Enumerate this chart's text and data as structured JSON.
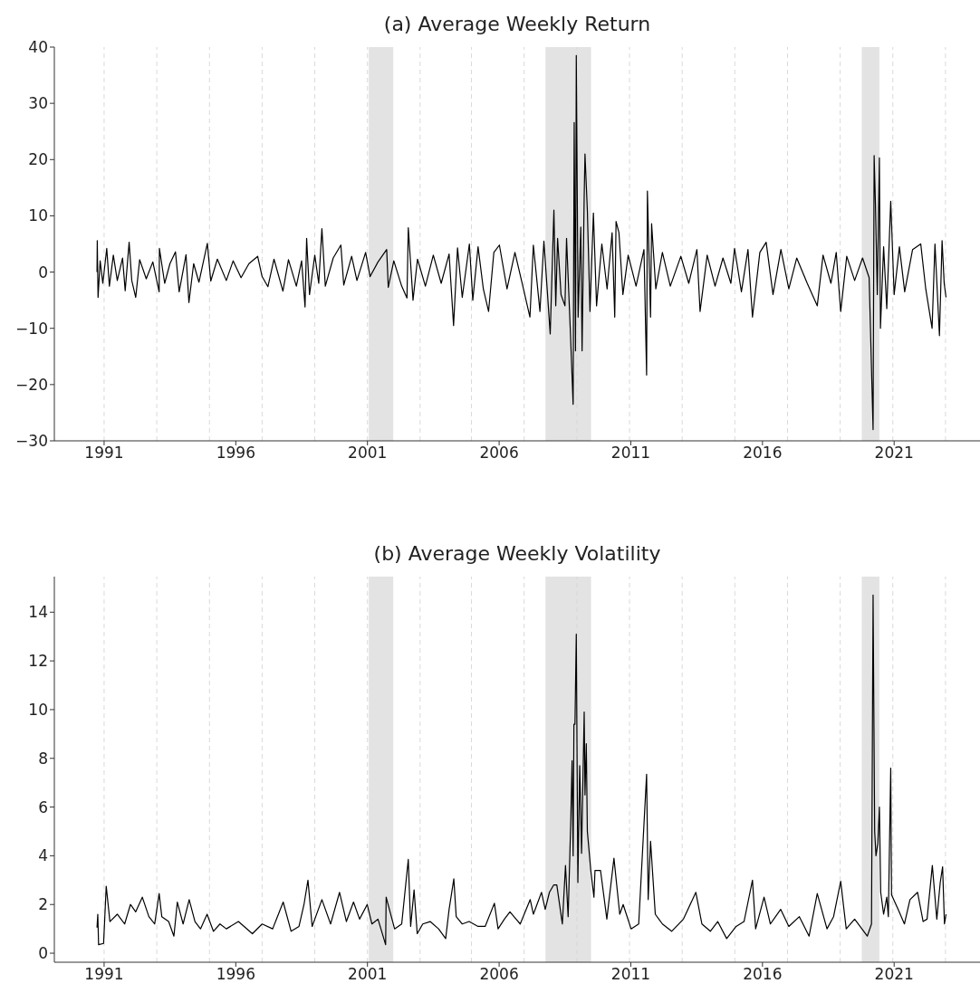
{
  "chart_data": [
    {
      "type": "line",
      "title": "(a) Average Weekly Return",
      "color": "#000000",
      "x": [
        1990.73,
        1990.74,
        1990.77,
        1990.85,
        1990.95,
        1991.1,
        1991.2,
        1991.35,
        1991.5,
        1991.7,
        1991.8,
        1991.95,
        1992.05,
        1992.2,
        1992.35,
        1992.6,
        1992.85,
        1993.09,
        1993.1,
        1993.3,
        1993.5,
        1993.71,
        1993.85,
        1994.11,
        1994.22,
        1994.4,
        1994.6,
        1994.92,
        1995.05,
        1995.3,
        1995.64,
        1995.9,
        1996.2,
        1996.5,
        1996.83,
        1997.0,
        1997.22,
        1997.45,
        1997.79,
        1998.0,
        1998.3,
        1998.5,
        1998.63,
        1998.69,
        1998.8,
        1999.0,
        1999.15,
        1999.27,
        1999.4,
        1999.7,
        1999.99,
        2000.1,
        2000.4,
        2000.6,
        2000.93,
        2001.1,
        2001.4,
        2001.73,
        2001.79,
        2002.0,
        2002.3,
        2002.5,
        2002.55,
        2002.73,
        2002.9,
        2003.2,
        2003.5,
        2003.8,
        2004.1,
        2004.27,
        2004.42,
        2004.6,
        2004.87,
        2005.0,
        2005.2,
        2005.4,
        2005.6,
        2005.8,
        2006.01,
        2006.3,
        2006.6,
        2006.9,
        2007.17,
        2007.3,
        2007.55,
        2007.7,
        2007.94,
        2008.08,
        2008.15,
        2008.22,
        2008.35,
        2008.5,
        2008.56,
        2008.7,
        2008.81,
        2008.85,
        2008.9,
        2008.93,
        2009.0,
        2009.1,
        2009.15,
        2009.23,
        2009.26,
        2009.35,
        2009.45,
        2009.58,
        2009.7,
        2009.9,
        2010.1,
        2010.29,
        2010.39,
        2010.44,
        2010.55,
        2010.7,
        2010.9,
        2011.2,
        2011.5,
        2011.6,
        2011.63,
        2011.75,
        2011.79,
        2011.95,
        2012.2,
        2012.5,
        2012.9,
        2013.2,
        2013.51,
        2013.63,
        2013.9,
        2014.2,
        2014.5,
        2014.8,
        2014.94,
        2015.2,
        2015.45,
        2015.62,
        2015.9,
        2016.14,
        2016.4,
        2016.7,
        2017.0,
        2017.3,
        2017.7,
        2018.08,
        2018.3,
        2018.6,
        2018.8,
        2018.97,
        2019.2,
        2019.5,
        2019.8,
        2020.05,
        2020.2,
        2020.24,
        2020.29,
        2020.36,
        2020.44,
        2020.48,
        2020.6,
        2020.72,
        2020.87,
        2021.0,
        2021.2,
        2021.4,
        2021.7,
        2022.01,
        2022.2,
        2022.44,
        2022.55,
        2022.72,
        2022.82,
        2022.9,
        2022.97
      ],
      "values": [
        0,
        5.6,
        -4.5,
        2,
        -2,
        4.2,
        -2.5,
        3,
        -1.5,
        2.5,
        -3.3,
        5.3,
        -1.5,
        -4.5,
        2.2,
        -1.2,
        1.8,
        -3.5,
        4.2,
        -2,
        1.5,
        3.6,
        -3.5,
        3.1,
        -5.4,
        1.5,
        -1.8,
        5.1,
        -1.6,
        2.3,
        -1.5,
        2,
        -1,
        1.5,
        2.8,
        -0.8,
        -2.6,
        2.3,
        -3.4,
        2.2,
        -2.5,
        2,
        -6.2,
        6,
        -4,
        3,
        -2,
        7.7,
        -2.5,
        2.5,
        4.8,
        -2.3,
        2.8,
        -1.5,
        3.5,
        -0.8,
        1.8,
        4,
        -2.7,
        2,
        -2.5,
        -4.6,
        7.9,
        -5,
        2.3,
        -2.5,
        3,
        -2,
        3.2,
        -9.5,
        4.3,
        -4.5,
        5,
        -5,
        4.5,
        -3,
        -7,
        3.5,
        4.8,
        -3,
        3.5,
        -2.5,
        -8,
        4.8,
        -7,
        5.5,
        -11,
        11,
        -6,
        6,
        -4,
        -6,
        6,
        -10,
        -23.5,
        26.6,
        -14,
        38.5,
        -8,
        8,
        -14,
        13.5,
        21,
        11,
        -7,
        10.5,
        -6,
        5,
        -3,
        7,
        -8,
        9,
        7,
        -4,
        3,
        -2.5,
        4,
        -18.3,
        14.4,
        -8,
        8.6,
        -3,
        3.5,
        -2.5,
        2.8,
        -2,
        4,
        -7,
        3,
        -2.5,
        2.5,
        -2,
        4.2,
        -3.5,
        4,
        -8,
        3.5,
        5.3,
        -4,
        4,
        -3,
        2.5,
        -2,
        -6,
        3,
        -2,
        3.5,
        -7,
        2.8,
        -1.5,
        2.5,
        -1,
        -28,
        20.7,
        12,
        -4,
        20.3,
        -10,
        4.5,
        -6.5,
        12.6,
        -4,
        4.5,
        -3.5,
        4,
        5,
        -3,
        -10,
        5,
        -11.3,
        5.6,
        -2,
        -4.5
      ],
      "xlim": [
        1989.11,
        2024.26
      ],
      "xticks": [
        1991,
        1996,
        2001,
        2006,
        2011,
        2016,
        2021
      ],
      "ylim": [
        -30,
        40
      ],
      "yticks": [
        {
          "value": -30,
          "label": "−30"
        },
        {
          "value": -20,
          "label": "−20"
        },
        {
          "value": -10,
          "label": "−10"
        },
        0,
        10,
        20,
        30,
        40
      ],
      "bands": [
        {
          "axis": "x",
          "from": 2001.05,
          "to": 2001.98,
          "color": "#e3e3e3"
        },
        {
          "axis": "x",
          "from": 2007.76,
          "to": 2009.49,
          "color": "#e3e3e3"
        },
        {
          "axis": "x",
          "from": 2019.77,
          "to": 2020.44,
          "color": "#e3e3e3"
        }
      ],
      "ref_lines": [
        {
          "axis": "x",
          "value": 1991.0,
          "color": "#d9d9d9",
          "line_style": "dashed"
        },
        {
          "axis": "x",
          "value": 1993.0,
          "color": "#d9d9d9",
          "line_style": "dashed"
        },
        {
          "axis": "x",
          "value": 1995.0,
          "color": "#d9d9d9",
          "line_style": "dashed"
        },
        {
          "axis": "x",
          "value": 1997.0,
          "color": "#d9d9d9",
          "line_style": "dashed"
        },
        {
          "axis": "x",
          "value": 1999.0,
          "color": "#d9d9d9",
          "line_style": "dashed"
        },
        {
          "axis": "x",
          "value": 2001.0,
          "color": "#d9d9d9",
          "line_style": "dashed"
        },
        {
          "axis": "x",
          "value": 2003.0,
          "color": "#d9d9d9",
          "line_style": "dashed"
        },
        {
          "axis": "x",
          "value": 2004.95,
          "color": "#d9d9d9",
          "line_style": "dashed"
        },
        {
          "axis": "x",
          "value": 2006.95,
          "color": "#d9d9d9",
          "line_style": "dashed"
        },
        {
          "axis": "x",
          "value": 2008.95,
          "color": "#d9d9d9",
          "line_style": "dashed"
        },
        {
          "axis": "x",
          "value": 2010.95,
          "color": "#d9d9d9",
          "line_style": "dashed"
        },
        {
          "axis": "x",
          "value": 2012.95,
          "color": "#d9d9d9",
          "line_style": "dashed"
        },
        {
          "axis": "x",
          "value": 2014.95,
          "color": "#d9d9d9",
          "line_style": "dashed"
        },
        {
          "axis": "x",
          "value": 2016.95,
          "color": "#d9d9d9",
          "line_style": "dashed"
        },
        {
          "axis": "x",
          "value": 2018.95,
          "color": "#d9d9d9",
          "line_style": "dashed"
        },
        {
          "axis": "x",
          "value": 2020.95,
          "color": "#d9d9d9",
          "line_style": "dashed"
        },
        {
          "axis": "x",
          "value": 2022.95,
          "color": "#d9d9d9",
          "line_style": "dashed"
        }
      ]
    },
    {
      "type": "line",
      "title": "(b) Average Weekly Volatility",
      "color": "#000000",
      "x": [
        1990.73,
        1990.76,
        1990.79,
        1990.98,
        1991.08,
        1991.22,
        1991.5,
        1991.78,
        1992.0,
        1992.2,
        1992.45,
        1992.7,
        1992.92,
        1993.09,
        1993.19,
        1993.45,
        1993.65,
        1993.78,
        1994.0,
        1994.23,
        1994.45,
        1994.66,
        1994.91,
        1995.15,
        1995.4,
        1995.64,
        1996.1,
        1996.63,
        1997.0,
        1997.4,
        1997.8,
        1998.1,
        1998.4,
        1998.59,
        1998.74,
        1998.9,
        1999.27,
        1999.6,
        1999.94,
        2000.2,
        2000.47,
        2000.7,
        2000.99,
        2001.17,
        2001.4,
        2001.69,
        2001.71,
        2002.03,
        2002.3,
        2002.55,
        2002.64,
        2002.77,
        2002.89,
        2003.1,
        2003.38,
        2003.7,
        2003.97,
        2004.1,
        2004.28,
        2004.37,
        2004.6,
        2004.86,
        2005.2,
        2005.47,
        2005.82,
        2005.96,
        2006.2,
        2006.41,
        2006.8,
        2007.18,
        2007.3,
        2007.61,
        2007.75,
        2007.91,
        2008.07,
        2008.19,
        2008.4,
        2008.52,
        2008.62,
        2008.72,
        2008.77,
        2008.81,
        2008.84,
        2008.88,
        2008.93,
        2008.99,
        2009.06,
        2009.13,
        2009.23,
        2009.26,
        2009.31,
        2009.35,
        2009.48,
        2009.6,
        2009.64,
        2009.85,
        2010.09,
        2010.36,
        2010.58,
        2010.71,
        2011.01,
        2011.3,
        2011.6,
        2011.66,
        2011.75,
        2011.93,
        2012.2,
        2012.55,
        2013.0,
        2013.47,
        2013.7,
        2014.02,
        2014.3,
        2014.64,
        2015.0,
        2015.3,
        2015.62,
        2015.74,
        2016.06,
        2016.3,
        2016.69,
        2017.0,
        2017.4,
        2017.77,
        2018.08,
        2018.45,
        2018.7,
        2018.97,
        2019.18,
        2019.5,
        2019.98,
        2020.14,
        2020.2,
        2020.26,
        2020.31,
        2020.38,
        2020.44,
        2020.49,
        2020.6,
        2020.72,
        2020.78,
        2020.87,
        2020.9,
        2021.15,
        2021.39,
        2021.6,
        2021.89,
        2022.1,
        2022.25,
        2022.45,
        2022.62,
        2022.75,
        2022.84,
        2022.91,
        2022.97
      ],
      "values": [
        1.05,
        1.6,
        0.35,
        0.4,
        2.75,
        1.3,
        1.6,
        1.2,
        2,
        1.7,
        2.3,
        1.5,
        1.2,
        2.45,
        1.5,
        1.3,
        0.7,
        2.1,
        1.2,
        2.2,
        1.3,
        1,
        1.6,
        0.9,
        1.2,
        1,
        1.3,
        0.8,
        1.2,
        1,
        2.1,
        0.9,
        1.1,
        2,
        3,
        1.1,
        2.2,
        1.2,
        2.5,
        1.3,
        2.1,
        1.4,
        2,
        1.2,
        1.4,
        0.35,
        2.3,
        1,
        1.2,
        3.85,
        1.1,
        2.6,
        0.8,
        1.2,
        1.3,
        1,
        0.6,
        1.8,
        3.05,
        1.5,
        1.2,
        1.3,
        1.1,
        1.1,
        2.05,
        1,
        1.4,
        1.7,
        1.2,
        2.2,
        1.6,
        2.5,
        1.8,
        2.5,
        2.8,
        2.8,
        1.2,
        3.6,
        1.5,
        5.4,
        7.9,
        4,
        9.4,
        9.4,
        13.1,
        2.9,
        7.7,
        4.1,
        9.9,
        6.5,
        8.6,
        5,
        3.4,
        2.3,
        3.4,
        3.4,
        1.4,
        3.9,
        1.6,
        2,
        1,
        1.2,
        7.35,
        2.2,
        4.6,
        1.6,
        1.2,
        0.9,
        1.4,
        2.5,
        1.2,
        0.9,
        1.3,
        0.6,
        1.1,
        1.3,
        3,
        1,
        2.3,
        1.2,
        1.8,
        1.1,
        1.5,
        0.7,
        2.45,
        1,
        1.5,
        2.95,
        1,
        1.4,
        0.7,
        1.2,
        14.7,
        5,
        4,
        4.5,
        6,
        2.5,
        1.6,
        2.3,
        1.5,
        7.6,
        2.4,
        1.8,
        1.2,
        2.2,
        2.5,
        1.3,
        1.4,
        3.6,
        1.4,
        2.9,
        3.55,
        1.2,
        1.6
      ],
      "xlim": [
        1989.11,
        2024.26
      ],
      "xticks": [
        1991,
        1996,
        2001,
        2006,
        2011,
        2016,
        2021
      ],
      "ylim": [
        -0.37,
        15.46
      ],
      "yticks": [
        0,
        2,
        4,
        6,
        8,
        10,
        12,
        14
      ],
      "bands": [
        {
          "axis": "x",
          "from": 2001.05,
          "to": 2001.98,
          "color": "#e3e3e3"
        },
        {
          "axis": "x",
          "from": 2007.76,
          "to": 2009.49,
          "color": "#e3e3e3"
        },
        {
          "axis": "x",
          "from": 2019.77,
          "to": 2020.44,
          "color": "#e3e3e3"
        }
      ],
      "ref_lines": [
        {
          "axis": "x",
          "value": 1991.0,
          "color": "#d9d9d9",
          "line_style": "dashed"
        },
        {
          "axis": "x",
          "value": 1993.0,
          "color": "#d9d9d9",
          "line_style": "dashed"
        },
        {
          "axis": "x",
          "value": 1995.0,
          "color": "#d9d9d9",
          "line_style": "dashed"
        },
        {
          "axis": "x",
          "value": 1997.0,
          "color": "#d9d9d9",
          "line_style": "dashed"
        },
        {
          "axis": "x",
          "value": 1999.0,
          "color": "#d9d9d9",
          "line_style": "dashed"
        },
        {
          "axis": "x",
          "value": 2001.0,
          "color": "#d9d9d9",
          "line_style": "dashed"
        },
        {
          "axis": "x",
          "value": 2003.0,
          "color": "#d9d9d9",
          "line_style": "dashed"
        },
        {
          "axis": "x",
          "value": 2004.95,
          "color": "#d9d9d9",
          "line_style": "dashed"
        },
        {
          "axis": "x",
          "value": 2006.95,
          "color": "#d9d9d9",
          "line_style": "dashed"
        },
        {
          "axis": "x",
          "value": 2008.95,
          "color": "#d9d9d9",
          "line_style": "dashed"
        },
        {
          "axis": "x",
          "value": 2010.95,
          "color": "#d9d9d9",
          "line_style": "dashed"
        },
        {
          "axis": "x",
          "value": 2012.95,
          "color": "#d9d9d9",
          "line_style": "dashed"
        },
        {
          "axis": "x",
          "value": 2014.95,
          "color": "#d9d9d9",
          "line_style": "dashed"
        },
        {
          "axis": "x",
          "value": 2016.95,
          "color": "#d9d9d9",
          "line_style": "dashed"
        },
        {
          "axis": "x",
          "value": 2018.95,
          "color": "#d9d9d9",
          "line_style": "dashed"
        },
        {
          "axis": "x",
          "value": 2020.95,
          "color": "#d9d9d9",
          "line_style": "dashed"
        },
        {
          "axis": "x",
          "value": 2022.95,
          "color": "#d9d9d9",
          "line_style": "dashed"
        }
      ]
    }
  ]
}
